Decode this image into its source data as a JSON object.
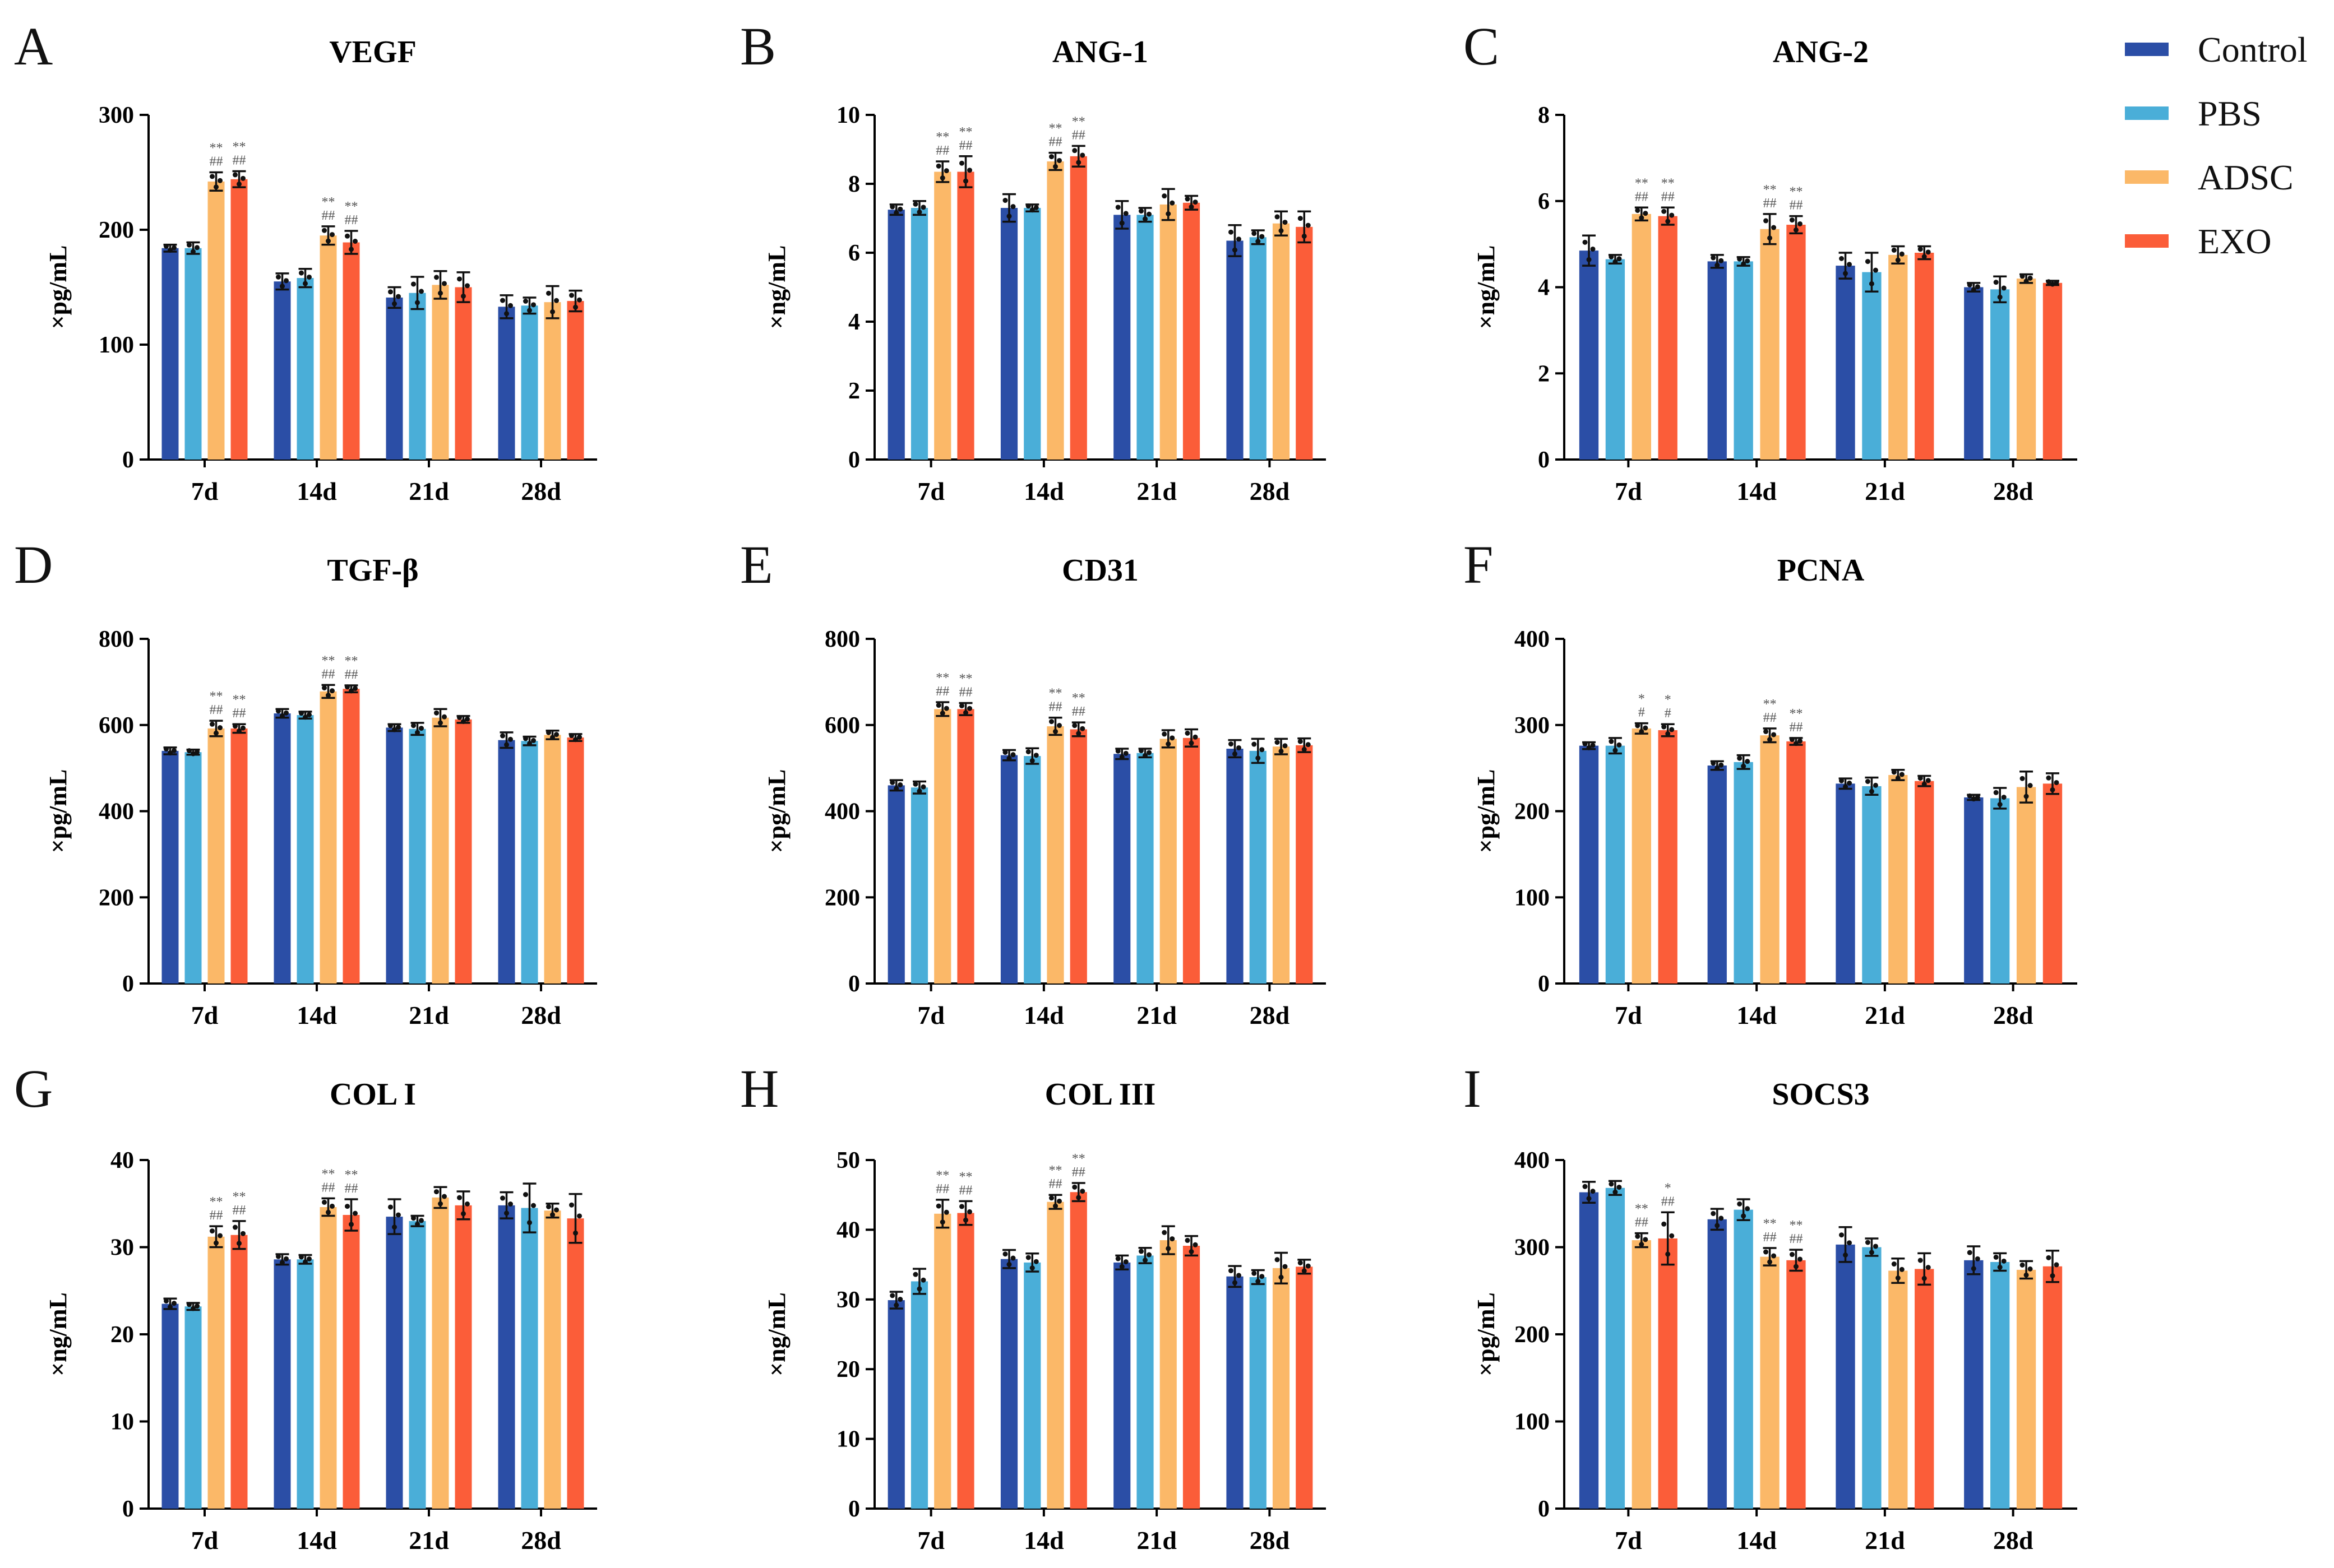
{
  "colors": {
    "Control": "#2b4ea6",
    "PBS": "#4aaed8",
    "ADSC": "#fbb868",
    "EXO": "#fb5d39",
    "axis": "#000000"
  },
  "legend": {
    "items": [
      "Control",
      "PBS",
      "ADSC",
      "EXO"
    ]
  },
  "chart_data": [
    {
      "panel": "A",
      "type": "bar",
      "title": "VEGF",
      "ylabel": "×pg/mL",
      "categories": [
        "7d",
        "14d",
        "21d",
        "28d"
      ],
      "ylim": [
        0,
        300
      ],
      "yticks": [
        0,
        100,
        200,
        300
      ],
      "series": [
        {
          "name": "Control",
          "values": [
            184,
            155,
            141,
            133
          ],
          "errors": [
            3,
            7,
            9,
            10
          ]
        },
        {
          "name": "PBS",
          "values": [
            184,
            158,
            145,
            134
          ],
          "errors": [
            5,
            8,
            14,
            7
          ]
        },
        {
          "name": "ADSC",
          "values": [
            242,
            195,
            152,
            137
          ],
          "errors": [
            8,
            8,
            12,
            14
          ]
        },
        {
          "name": "EXO",
          "values": [
            244,
            189,
            150,
            138
          ],
          "errors": [
            7,
            10,
            13,
            9
          ]
        }
      ],
      "significance": {
        "ADSC": [
          [
            "**",
            "##"
          ],
          [
            "**",
            "##"
          ],
          [],
          []
        ],
        "EXO": [
          [
            "**",
            "##"
          ],
          [
            "**",
            "##"
          ],
          [],
          []
        ]
      }
    },
    {
      "panel": "B",
      "type": "bar",
      "title": "ANG-1",
      "ylabel": "×ng/mL",
      "categories": [
        "7d",
        "14d",
        "21d",
        "28d"
      ],
      "ylim": [
        0,
        10
      ],
      "yticks": [
        0,
        2,
        4,
        6,
        8,
        10
      ],
      "series": [
        {
          "name": "Control",
          "values": [
            7.25,
            7.3,
            7.1,
            6.35
          ],
          "errors": [
            0.15,
            0.4,
            0.4,
            0.45
          ]
        },
        {
          "name": "PBS",
          "values": [
            7.3,
            7.3,
            7.1,
            6.45
          ],
          "errors": [
            0.2,
            0.1,
            0.2,
            0.2
          ]
        },
        {
          "name": "ADSC",
          "values": [
            8.35,
            8.65,
            7.4,
            6.85
          ],
          "errors": [
            0.3,
            0.25,
            0.45,
            0.35
          ]
        },
        {
          "name": "EXO",
          "values": [
            8.35,
            8.8,
            7.45,
            6.75
          ],
          "errors": [
            0.45,
            0.3,
            0.2,
            0.45
          ]
        }
      ],
      "significance": {
        "ADSC": [
          [
            "**",
            "##"
          ],
          [
            "**",
            "##"
          ],
          [],
          []
        ],
        "EXO": [
          [
            "**",
            "##"
          ],
          [
            "**",
            "##"
          ],
          [],
          []
        ]
      }
    },
    {
      "panel": "C",
      "type": "bar",
      "title": "ANG-2",
      "ylabel": "×ng/mL",
      "categories": [
        "7d",
        "14d",
        "21d",
        "28d"
      ],
      "ylim": [
        0,
        8
      ],
      "yticks": [
        0,
        2,
        4,
        6,
        8
      ],
      "series": [
        {
          "name": "Control",
          "values": [
            4.85,
            4.6,
            4.5,
            4.0
          ],
          "errors": [
            0.35,
            0.15,
            0.3,
            0.1
          ]
        },
        {
          "name": "PBS",
          "values": [
            4.65,
            4.6,
            4.35,
            3.95
          ],
          "errors": [
            0.1,
            0.1,
            0.45,
            0.3
          ]
        },
        {
          "name": "ADSC",
          "values": [
            5.7,
            5.35,
            4.75,
            4.2
          ],
          "errors": [
            0.15,
            0.35,
            0.2,
            0.1
          ]
        },
        {
          "name": "EXO",
          "values": [
            5.65,
            5.45,
            4.8,
            4.1
          ],
          "errors": [
            0.2,
            0.2,
            0.15,
            0.05
          ]
        }
      ],
      "significance": {
        "ADSC": [
          [
            "**",
            "##"
          ],
          [
            "**",
            "##"
          ],
          [],
          []
        ],
        "EXO": [
          [
            "**",
            "##"
          ],
          [
            "**",
            "##"
          ],
          [],
          []
        ]
      }
    },
    {
      "panel": "D",
      "type": "bar",
      "title": "TGF-β",
      "ylabel": "×pg/mL",
      "categories": [
        "7d",
        "14d",
        "21d",
        "28d"
      ],
      "ylim": [
        0,
        800
      ],
      "yticks": [
        0,
        200,
        400,
        600,
        800
      ],
      "series": [
        {
          "name": "Control",
          "values": [
            540,
            627,
            594,
            565
          ],
          "errors": [
            8,
            10,
            8,
            18
          ]
        },
        {
          "name": "PBS",
          "values": [
            537,
            623,
            591,
            563
          ],
          "errors": [
            6,
            8,
            14,
            10
          ]
        },
        {
          "name": "ADSC",
          "values": [
            592,
            678,
            617,
            577
          ],
          "errors": [
            18,
            15,
            20,
            10
          ]
        },
        {
          "name": "EXO",
          "values": [
            592,
            684,
            613,
            571
          ],
          "errors": [
            10,
            8,
            8,
            8
          ]
        }
      ],
      "significance": {
        "ADSC": [
          [
            "**",
            "##"
          ],
          [
            "**",
            "##"
          ],
          [],
          []
        ],
        "EXO": [
          [
            "**",
            "##"
          ],
          [
            "**",
            "##"
          ],
          [],
          []
        ]
      }
    },
    {
      "panel": "E",
      "type": "bar",
      "title": "CD31",
      "ylabel": "×pg/mL",
      "categories": [
        "7d",
        "14d",
        "21d",
        "28d"
      ],
      "ylim": [
        0,
        800
      ],
      "yticks": [
        0,
        200,
        400,
        600,
        800
      ],
      "series": [
        {
          "name": "Control",
          "values": [
            460,
            530,
            533,
            545
          ],
          "errors": [
            12,
            12,
            12,
            20
          ]
        },
        {
          "name": "PBS",
          "values": [
            455,
            528,
            535,
            540
          ],
          "errors": [
            14,
            18,
            10,
            28
          ]
        },
        {
          "name": "ADSC",
          "values": [
            637,
            597,
            568,
            550
          ],
          "errors": [
            16,
            20,
            20,
            18
          ]
        },
        {
          "name": "EXO",
          "values": [
            637,
            590,
            570,
            553
          ],
          "errors": [
            14,
            16,
            20,
            16
          ]
        }
      ],
      "significance": {
        "ADSC": [
          [
            "**",
            "##"
          ],
          [
            "**",
            "##"
          ],
          [],
          []
        ],
        "EXO": [
          [
            "**",
            "##"
          ],
          [
            "**",
            "##"
          ],
          [],
          []
        ]
      }
    },
    {
      "panel": "F",
      "type": "bar",
      "title": "PCNA",
      "ylabel": "×pg/mL",
      "categories": [
        "7d",
        "14d",
        "21d",
        "28d"
      ],
      "ylim": [
        0,
        400
      ],
      "yticks": [
        0,
        100,
        200,
        300,
        400
      ],
      "series": [
        {
          "name": "Control",
          "values": [
            276,
            253,
            232,
            216
          ],
          "errors": [
            4,
            5,
            6,
            3
          ]
        },
        {
          "name": "PBS",
          "values": [
            276,
            257,
            229,
            215
          ],
          "errors": [
            9,
            8,
            10,
            12
          ]
        },
        {
          "name": "ADSC",
          "values": [
            296,
            288,
            242,
            228
          ],
          "errors": [
            6,
            8,
            6,
            18
          ]
        },
        {
          "name": "EXO",
          "values": [
            294,
            281,
            235,
            232
          ],
          "errors": [
            7,
            4,
            6,
            12
          ]
        }
      ],
      "significance": {
        "ADSC": [
          [
            "*",
            "#"
          ],
          [
            "**",
            "##"
          ],
          [],
          []
        ],
        "EXO": [
          [
            "*",
            "#"
          ],
          [
            "**",
            "##"
          ],
          [],
          []
        ]
      }
    },
    {
      "panel": "G",
      "type": "bar",
      "title": "COL I",
      "ylabel": "×ng/mL",
      "categories": [
        "7d",
        "14d",
        "21d",
        "28d"
      ],
      "ylim": [
        0,
        40
      ],
      "yticks": [
        0,
        10,
        20,
        30,
        40
      ],
      "series": [
        {
          "name": "Control",
          "values": [
            23.5,
            28.6,
            33.5,
            34.8
          ],
          "errors": [
            0.6,
            0.6,
            2.0,
            1.5
          ]
        },
        {
          "name": "PBS",
          "values": [
            23.2,
            28.6,
            33.0,
            34.5
          ],
          "errors": [
            0.4,
            0.5,
            0.6,
            2.8
          ]
        },
        {
          "name": "ADSC",
          "values": [
            31.2,
            34.6,
            35.7,
            34.2
          ],
          "errors": [
            1.2,
            1.0,
            1.2,
            0.8
          ]
        },
        {
          "name": "EXO",
          "values": [
            31.4,
            33.7,
            34.8,
            33.3
          ],
          "errors": [
            1.6,
            1.8,
            1.6,
            2.8
          ]
        }
      ],
      "significance": {
        "ADSC": [
          [
            "**",
            "##"
          ],
          [
            "**",
            "##"
          ],
          [],
          []
        ],
        "EXO": [
          [
            "**",
            "##"
          ],
          [
            "**",
            "##"
          ],
          [],
          []
        ]
      }
    },
    {
      "panel": "H",
      "type": "bar",
      "title": "COL III",
      "ylabel": "×ng/mL",
      "categories": [
        "7d",
        "14d",
        "21d",
        "28d"
      ],
      "ylim": [
        0,
        50
      ],
      "yticks": [
        0,
        10,
        20,
        30,
        40,
        50
      ],
      "series": [
        {
          "name": "Control",
          "values": [
            29.9,
            35.8,
            35.3,
            33.3
          ],
          "errors": [
            1.2,
            1.3,
            1.0,
            1.5
          ]
        },
        {
          "name": "PBS",
          "values": [
            32.6,
            35.3,
            36.3,
            33.2
          ],
          "errors": [
            1.8,
            1.3,
            1.1,
            1.0
          ]
        },
        {
          "name": "ADSC",
          "values": [
            42.3,
            44.0,
            38.5,
            34.5
          ],
          "errors": [
            2.0,
            1.0,
            2.0,
            2.2
          ]
        },
        {
          "name": "EXO",
          "values": [
            42.4,
            45.4,
            37.7,
            34.7
          ],
          "errors": [
            1.7,
            1.3,
            1.4,
            1.0
          ]
        }
      ],
      "significance": {
        "ADSC": [
          [
            "**",
            "##"
          ],
          [
            "**",
            "##"
          ],
          [],
          []
        ],
        "EXO": [
          [
            "**",
            "##"
          ],
          [
            "**",
            "##"
          ],
          [],
          []
        ]
      }
    },
    {
      "panel": "I",
      "type": "bar",
      "title": "SOCS3",
      "ylabel": "×pg/mL",
      "categories": [
        "7d",
        "14d",
        "21d",
        "28d"
      ],
      "ylim": [
        0,
        400
      ],
      "yticks": [
        0,
        100,
        200,
        300,
        400
      ],
      "series": [
        {
          "name": "Control",
          "values": [
            363,
            332,
            303,
            285
          ],
          "errors": [
            12,
            12,
            20,
            16
          ]
        },
        {
          "name": "PBS",
          "values": [
            368,
            343,
            300,
            283
          ],
          "errors": [
            8,
            12,
            10,
            10
          ]
        },
        {
          "name": "ADSC",
          "values": [
            308,
            289,
            273,
            274
          ],
          "errors": [
            8,
            10,
            14,
            10
          ]
        },
        {
          "name": "EXO",
          "values": [
            310,
            285,
            275,
            278
          ],
          "errors": [
            30,
            12,
            18,
            18
          ]
        }
      ],
      "significance": {
        "ADSC": [
          [
            "**",
            "##"
          ],
          [
            "**",
            "##"
          ],
          [],
          []
        ],
        "EXO": [
          [
            "*",
            "##"
          ],
          [
            "**",
            "##"
          ],
          [],
          []
        ]
      }
    }
  ]
}
